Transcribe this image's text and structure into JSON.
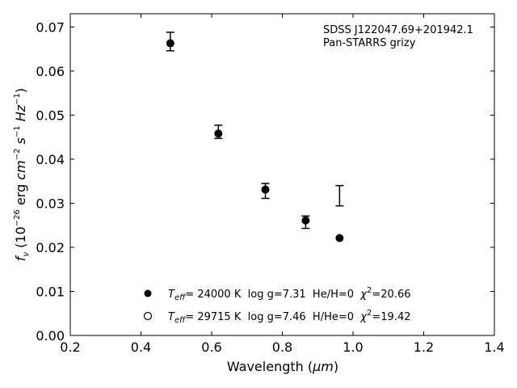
{
  "chart_data": {
    "type": "scatter",
    "annotation": [
      "SDSS J122047.69+201942.1",
      "Pan-STARRS grizy"
    ],
    "xlabel": {
      "text": "Wavelength (",
      "unit": "μm",
      "close": ")"
    },
    "ylabel": {
      "lead": "f",
      "sub": "ν",
      "rest": " (10",
      "exp1": "−26",
      "mid": " erg ",
      "cm": "cm",
      "exp2": "−2",
      "s": " s",
      "exp3": "−1",
      "hz": " Hz",
      "exp4": "−1",
      "close": ")"
    },
    "xlim": [
      0.2,
      1.4
    ],
    "ylim": [
      0.0,
      0.073
    ],
    "xticks": [
      "0.2",
      "0.4",
      "0.6",
      "0.8",
      "1.0",
      "1.2",
      "1.4"
    ],
    "yticks": [
      "0.00",
      "0.01",
      "0.02",
      "0.03",
      "0.04",
      "0.05",
      "0.06",
      "0.07"
    ],
    "grid": false,
    "observed": [
      {
        "x": 0.483,
        "y": 0.0667,
        "err": 0.0021
      },
      {
        "x": 0.619,
        "y": 0.0462,
        "err": 0.0015
      },
      {
        "x": 0.752,
        "y": 0.0328,
        "err": 0.0017
      },
      {
        "x": 0.866,
        "y": 0.0257,
        "err": 0.0014
      },
      {
        "x": 0.962,
        "y": 0.0317,
        "err": 0.0023
      }
    ],
    "series": [
      {
        "marker": "filled",
        "values": [
          [
            0.483,
            0.0663
          ],
          [
            0.619,
            0.0458
          ],
          [
            0.752,
            0.0331
          ],
          [
            0.866,
            0.0261
          ],
          [
            0.962,
            0.0221
          ]
        ],
        "legend": {
          "teff_label": "T",
          "teff_sub": "eff",
          "text": "= 24000 K  log g=7.31  He/H=0  ",
          "chi": "χ",
          "chi_sup": "2",
          "chi_val": "=20.66"
        }
      },
      {
        "marker": "open",
        "values": [],
        "legend": {
          "teff_label": "T",
          "teff_sub": "eff",
          "text": "= 29715 K  log g=7.46  H/He=0  ",
          "chi": "χ",
          "chi_sup": "2",
          "chi_val": "=19.42"
        }
      }
    ]
  }
}
